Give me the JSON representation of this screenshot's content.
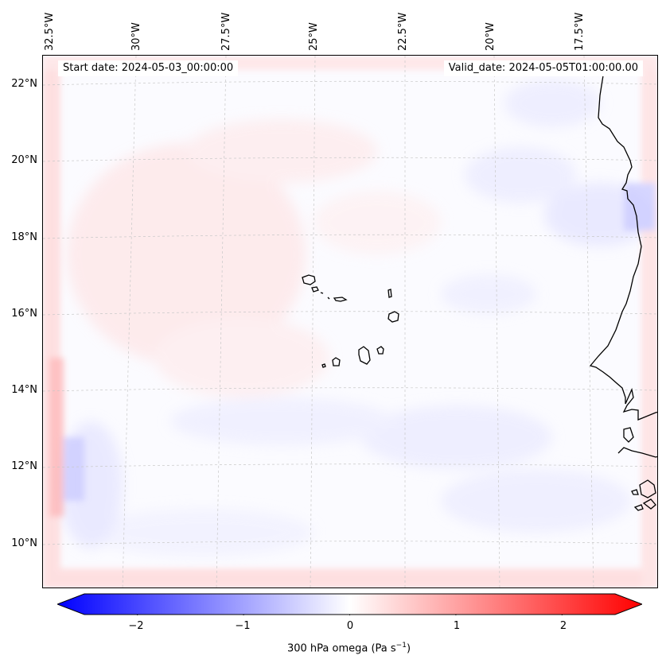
{
  "header": {
    "start_date": "Start date: 2024-05-03_00:00:00",
    "valid_date": "Valid_date: 2024-05-05T01:00:00.00"
  },
  "longitude_labels": [
    "32.5°W",
    "30°W",
    "27.5°W",
    "25°W",
    "22.5°W",
    "20°W",
    "17.5°W"
  ],
  "latitude_labels": [
    "22°N",
    "20°N",
    "18°N",
    "16°N",
    "14°N",
    "12°N",
    "10°N"
  ],
  "colorbar": {
    "title_main": "300 hPa omega (Pa s",
    "title_exp": "−1",
    "title_end": ")",
    "ticks": [
      "−2",
      "−1",
      "0",
      "1",
      "2"
    ],
    "min": -2.5,
    "max": 2.5,
    "low_color": "#0000ff",
    "mid_color": "#ffffff",
    "high_color": "#ff0000"
  },
  "colors": {
    "coastline": "#000000",
    "gridline": "#c8c8c8",
    "positive_tint": "#ffd6d6",
    "negative_tint": "#dcdcff"
  }
}
